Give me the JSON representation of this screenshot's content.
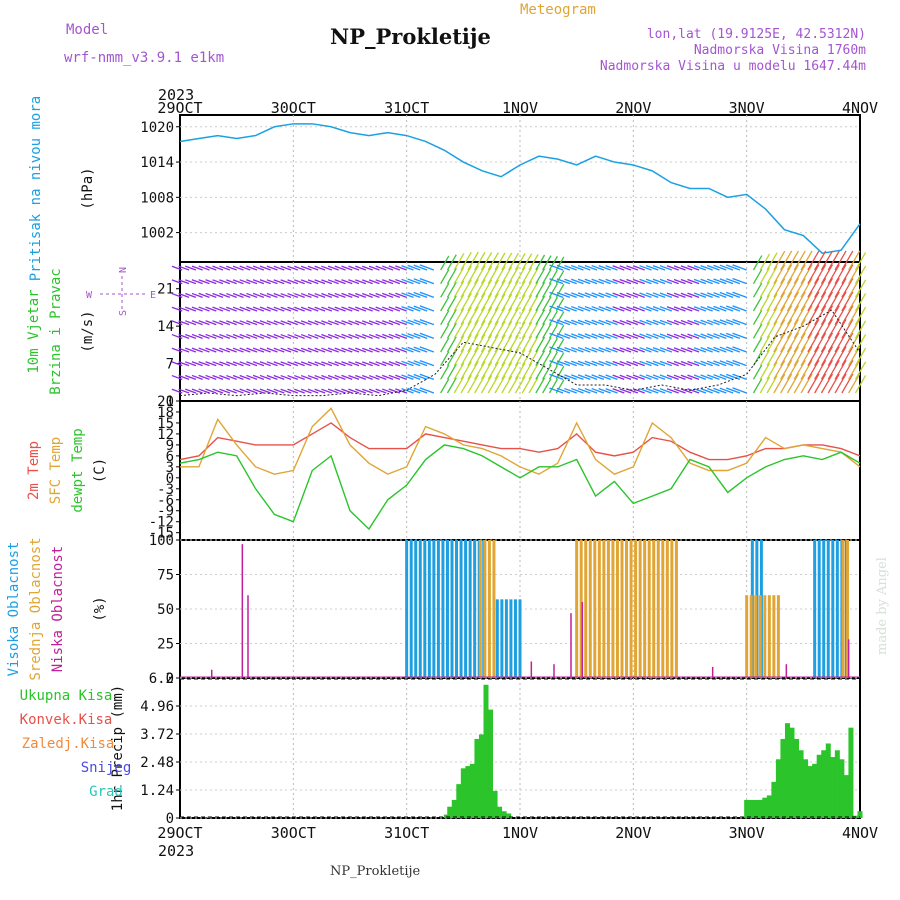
{
  "header": {
    "model_label": "Model",
    "model_name": "wrf-nmm_v3.9.1 e1km",
    "chart_type_label": "Meteogram",
    "title": "NP_Prokletije",
    "lonlat": "lon,lat (19.9125E, 42.5312N)",
    "elevation": "Nadmorska Visina 1760m",
    "model_elevation": "Nadmorska Visina u modelu 1647.44m",
    "credit": "made by Angel",
    "footer_title": "NP_Prokletije"
  },
  "time_axis": {
    "year": "2023",
    "ticks": [
      "29OCT",
      "30OCT",
      "31OCT",
      "1NOV",
      "2NOV",
      "3NOV",
      "4NOV"
    ]
  },
  "colors": {
    "pressure": "#1ba1e2",
    "temp2m": "#e8514a",
    "sfc_temp": "#e0a535",
    "dewpt": "#2bc42b",
    "cloud_high": "#1e9fe0",
    "cloud_mid": "#e0a535",
    "cloud_low": "#c0209a",
    "precip": "#2bc42b",
    "wind_label": "#2bc42b",
    "violet": "#a455d0"
  },
  "compass": {
    "n": "N",
    "s": "S",
    "e": "E",
    "w": "W"
  },
  "chart_data": [
    {
      "type": "line",
      "panel": "pressure",
      "ylabel_lines": [
        "Pritisak na nivou mora",
        "(hPa)"
      ],
      "yticks": [
        1002,
        1008,
        1014,
        1020
      ],
      "ylim": [
        997,
        1022
      ],
      "x_days": [
        0,
        0.167,
        0.333,
        0.5,
        0.667,
        0.833,
        1.0,
        1.167,
        1.333,
        1.5,
        1.667,
        1.833,
        2.0,
        2.167,
        2.333,
        2.5,
        2.667,
        2.833,
        3.0,
        3.167,
        3.333,
        3.5,
        3.667,
        3.833,
        4.0,
        4.167,
        4.333,
        4.5,
        4.667,
        4.833,
        5.0,
        5.167,
        5.333,
        5.5,
        5.667,
        5.833,
        6.0
      ],
      "series": [
        {
          "values": [
            1017.5,
            1018.0,
            1018.5,
            1018.0,
            1018.5,
            1020.0,
            1020.5,
            1020.5,
            1020.0,
            1019.0,
            1018.5,
            1019.0,
            1018.5,
            1017.5,
            1016.0,
            1014.0,
            1012.5,
            1011.5,
            1013.5,
            1015.0,
            1014.5,
            1013.5,
            1015.0,
            1014.0,
            1013.5,
            1012.5,
            1010.5,
            1009.5,
            1009.5,
            1008.0,
            1008.5,
            1006.0,
            1002.5,
            1001.5,
            998.5,
            999.0,
            1003.5
          ]
        }
      ]
    },
    {
      "type": "scatter",
      "panel": "wind",
      "ylabel_lines": [
        "10m Vjetar",
        "Brzina i Pravac",
        "(m/s)"
      ],
      "yticks": [
        0,
        7,
        14,
        21
      ],
      "ylim": [
        0,
        26
      ],
      "x_days": [
        0,
        0.25,
        0.5,
        0.75,
        1.0,
        1.25,
        1.5,
        1.75,
        2.0,
        2.25,
        2.5,
        2.75,
        3.0,
        3.25,
        3.5,
        3.75,
        4.0,
        4.25,
        4.5,
        4.75,
        5.0,
        5.25,
        5.5,
        5.75,
        6.0
      ],
      "speed": [
        1,
        1.5,
        1,
        1.5,
        1,
        1,
        1.5,
        1,
        2,
        5,
        11,
        10,
        9,
        6,
        3,
        3,
        2,
        3,
        2,
        3,
        5,
        12,
        14,
        17,
        9
      ]
    },
    {
      "type": "line",
      "panel": "temperature",
      "ylabel_lines": [
        "2m Temp",
        "SFC Temp",
        "dewpt Temp",
        "(C)"
      ],
      "yticks": [
        -15,
        -12,
        -9,
        -6,
        -3,
        0,
        3,
        6,
        9,
        12,
        15,
        18,
        21
      ],
      "ylim": [
        -17,
        21
      ],
      "x_days": [
        0,
        0.167,
        0.333,
        0.5,
        0.667,
        0.833,
        1.0,
        1.167,
        1.333,
        1.5,
        1.667,
        1.833,
        2.0,
        2.167,
        2.333,
        2.5,
        2.667,
        2.833,
        3.0,
        3.167,
        3.333,
        3.5,
        3.667,
        3.833,
        4.0,
        4.167,
        4.333,
        4.5,
        4.667,
        4.833,
        5.0,
        5.167,
        5.333,
        5.5,
        5.667,
        5.833,
        6.0
      ],
      "series": [
        {
          "name": "2m Temp",
          "values": [
            5,
            6,
            11,
            10,
            9,
            9,
            9,
            12,
            15,
            11,
            8,
            8,
            8,
            12,
            11,
            10,
            9,
            8,
            8,
            7,
            8,
            12,
            7,
            6,
            7,
            11,
            10,
            7,
            5,
            5,
            6,
            8,
            8,
            9,
            9,
            8,
            6
          ]
        },
        {
          "name": "SFC Temp",
          "values": [
            3,
            3,
            16,
            9,
            3,
            1,
            2,
            14,
            19,
            9,
            4,
            1,
            3,
            14,
            12,
            9,
            8,
            6,
            3,
            1,
            4,
            15,
            5,
            1,
            3,
            15,
            11,
            4,
            2,
            2,
            4,
            11,
            8,
            9,
            8,
            7,
            3
          ]
        },
        {
          "name": "dewpt Temp",
          "values": [
            4,
            5,
            7,
            6,
            -3,
            -10,
            -12,
            2,
            6,
            -9,
            -14,
            -6,
            -2,
            5,
            9,
            8,
            6,
            3,
            0,
            3,
            3,
            5,
            -5,
            -1,
            -7,
            -5,
            -3,
            5,
            3,
            -4,
            0,
            3,
            5,
            6,
            5,
            7,
            4
          ]
        }
      ]
    },
    {
      "type": "bar",
      "panel": "clouds",
      "ylabel_lines": [
        "Visoka Oblacnost",
        "Srednja Oblacnost",
        "Niska Oblacnost",
        "(%)"
      ],
      "yticks": [
        0,
        25,
        50,
        75,
        100
      ],
      "ylim": [
        0,
        100
      ],
      "series": [
        {
          "name": "Visoka Oblacnost",
          "segments": [
            {
              "x0": 2.0,
              "x1": 2.7,
              "value": 100
            },
            {
              "x0": 2.8,
              "x1": 3.0,
              "value": 57
            },
            {
              "x0": 5.05,
              "x1": 5.15,
              "value": 100
            },
            {
              "x0": 5.6,
              "x1": 5.9,
              "value": 100
            }
          ]
        },
        {
          "name": "Srednja Oblacnost",
          "segments": [
            {
              "x0": 2.65,
              "x1": 2.8,
              "value": 100
            },
            {
              "x0": 3.5,
              "x1": 4.4,
              "value": 100
            },
            {
              "x0": 5.0,
              "x1": 5.3,
              "value": 60
            },
            {
              "x0": 5.85,
              "x1": 5.92,
              "value": 100
            }
          ]
        },
        {
          "name": "Niska Oblacnost",
          "spikes": [
            {
              "x": 0.28,
              "value": 6
            },
            {
              "x": 0.55,
              "value": 97
            },
            {
              "x": 0.6,
              "value": 60
            },
            {
              "x": 3.1,
              "value": 12
            },
            {
              "x": 3.3,
              "value": 10
            },
            {
              "x": 3.45,
              "value": 47
            },
            {
              "x": 3.55,
              "value": 55
            },
            {
              "x": 4.7,
              "value": 8
            },
            {
              "x": 5.35,
              "value": 10
            },
            {
              "x": 5.9,
              "value": 28
            }
          ]
        }
      ]
    },
    {
      "type": "bar",
      "panel": "precipitation",
      "ylabel_lines": [
        "1hr Precip (mm)"
      ],
      "legend": [
        "Ukupna Kisa",
        "Konvek.Kisa",
        "Zaledj.Kisa",
        "Snijeg",
        "Grad"
      ],
      "legend_colors": [
        "#2bc42b",
        "#e8514a",
        "#f08a3c",
        "#4b4be0",
        "#2bc4b8"
      ],
      "yticks": [
        0,
        1.24,
        2.48,
        3.72,
        4.96,
        6.2
      ],
      "ylim": [
        0,
        6.2
      ],
      "x_days": [
        0.26,
        2.35,
        2.38,
        2.42,
        2.46,
        2.5,
        2.54,
        2.58,
        2.62,
        2.66,
        2.7,
        2.74,
        2.78,
        2.82,
        2.86,
        2.9,
        5.0,
        5.04,
        5.08,
        5.12,
        5.16,
        5.2,
        5.24,
        5.28,
        5.32,
        5.36,
        5.4,
        5.44,
        5.48,
        5.52,
        5.56,
        5.6,
        5.64,
        5.68,
        5.72,
        5.76,
        5.8,
        5.84,
        5.88,
        5.92,
        5.96,
        6.0
      ],
      "values": [
        0.05,
        0.15,
        0.5,
        0.8,
        1.5,
        2.2,
        2.3,
        2.4,
        3.5,
        3.7,
        5.9,
        4.8,
        1.2,
        0.5,
        0.3,
        0.2,
        0.8,
        0.8,
        0.8,
        0.8,
        0.9,
        1.0,
        1.6,
        2.6,
        3.5,
        4.2,
        4.0,
        3.5,
        3.0,
        2.6,
        2.3,
        2.4,
        2.8,
        3.0,
        3.3,
        2.7,
        3.0,
        2.6,
        1.9,
        4.0,
        0.1,
        0.3
      ]
    }
  ]
}
